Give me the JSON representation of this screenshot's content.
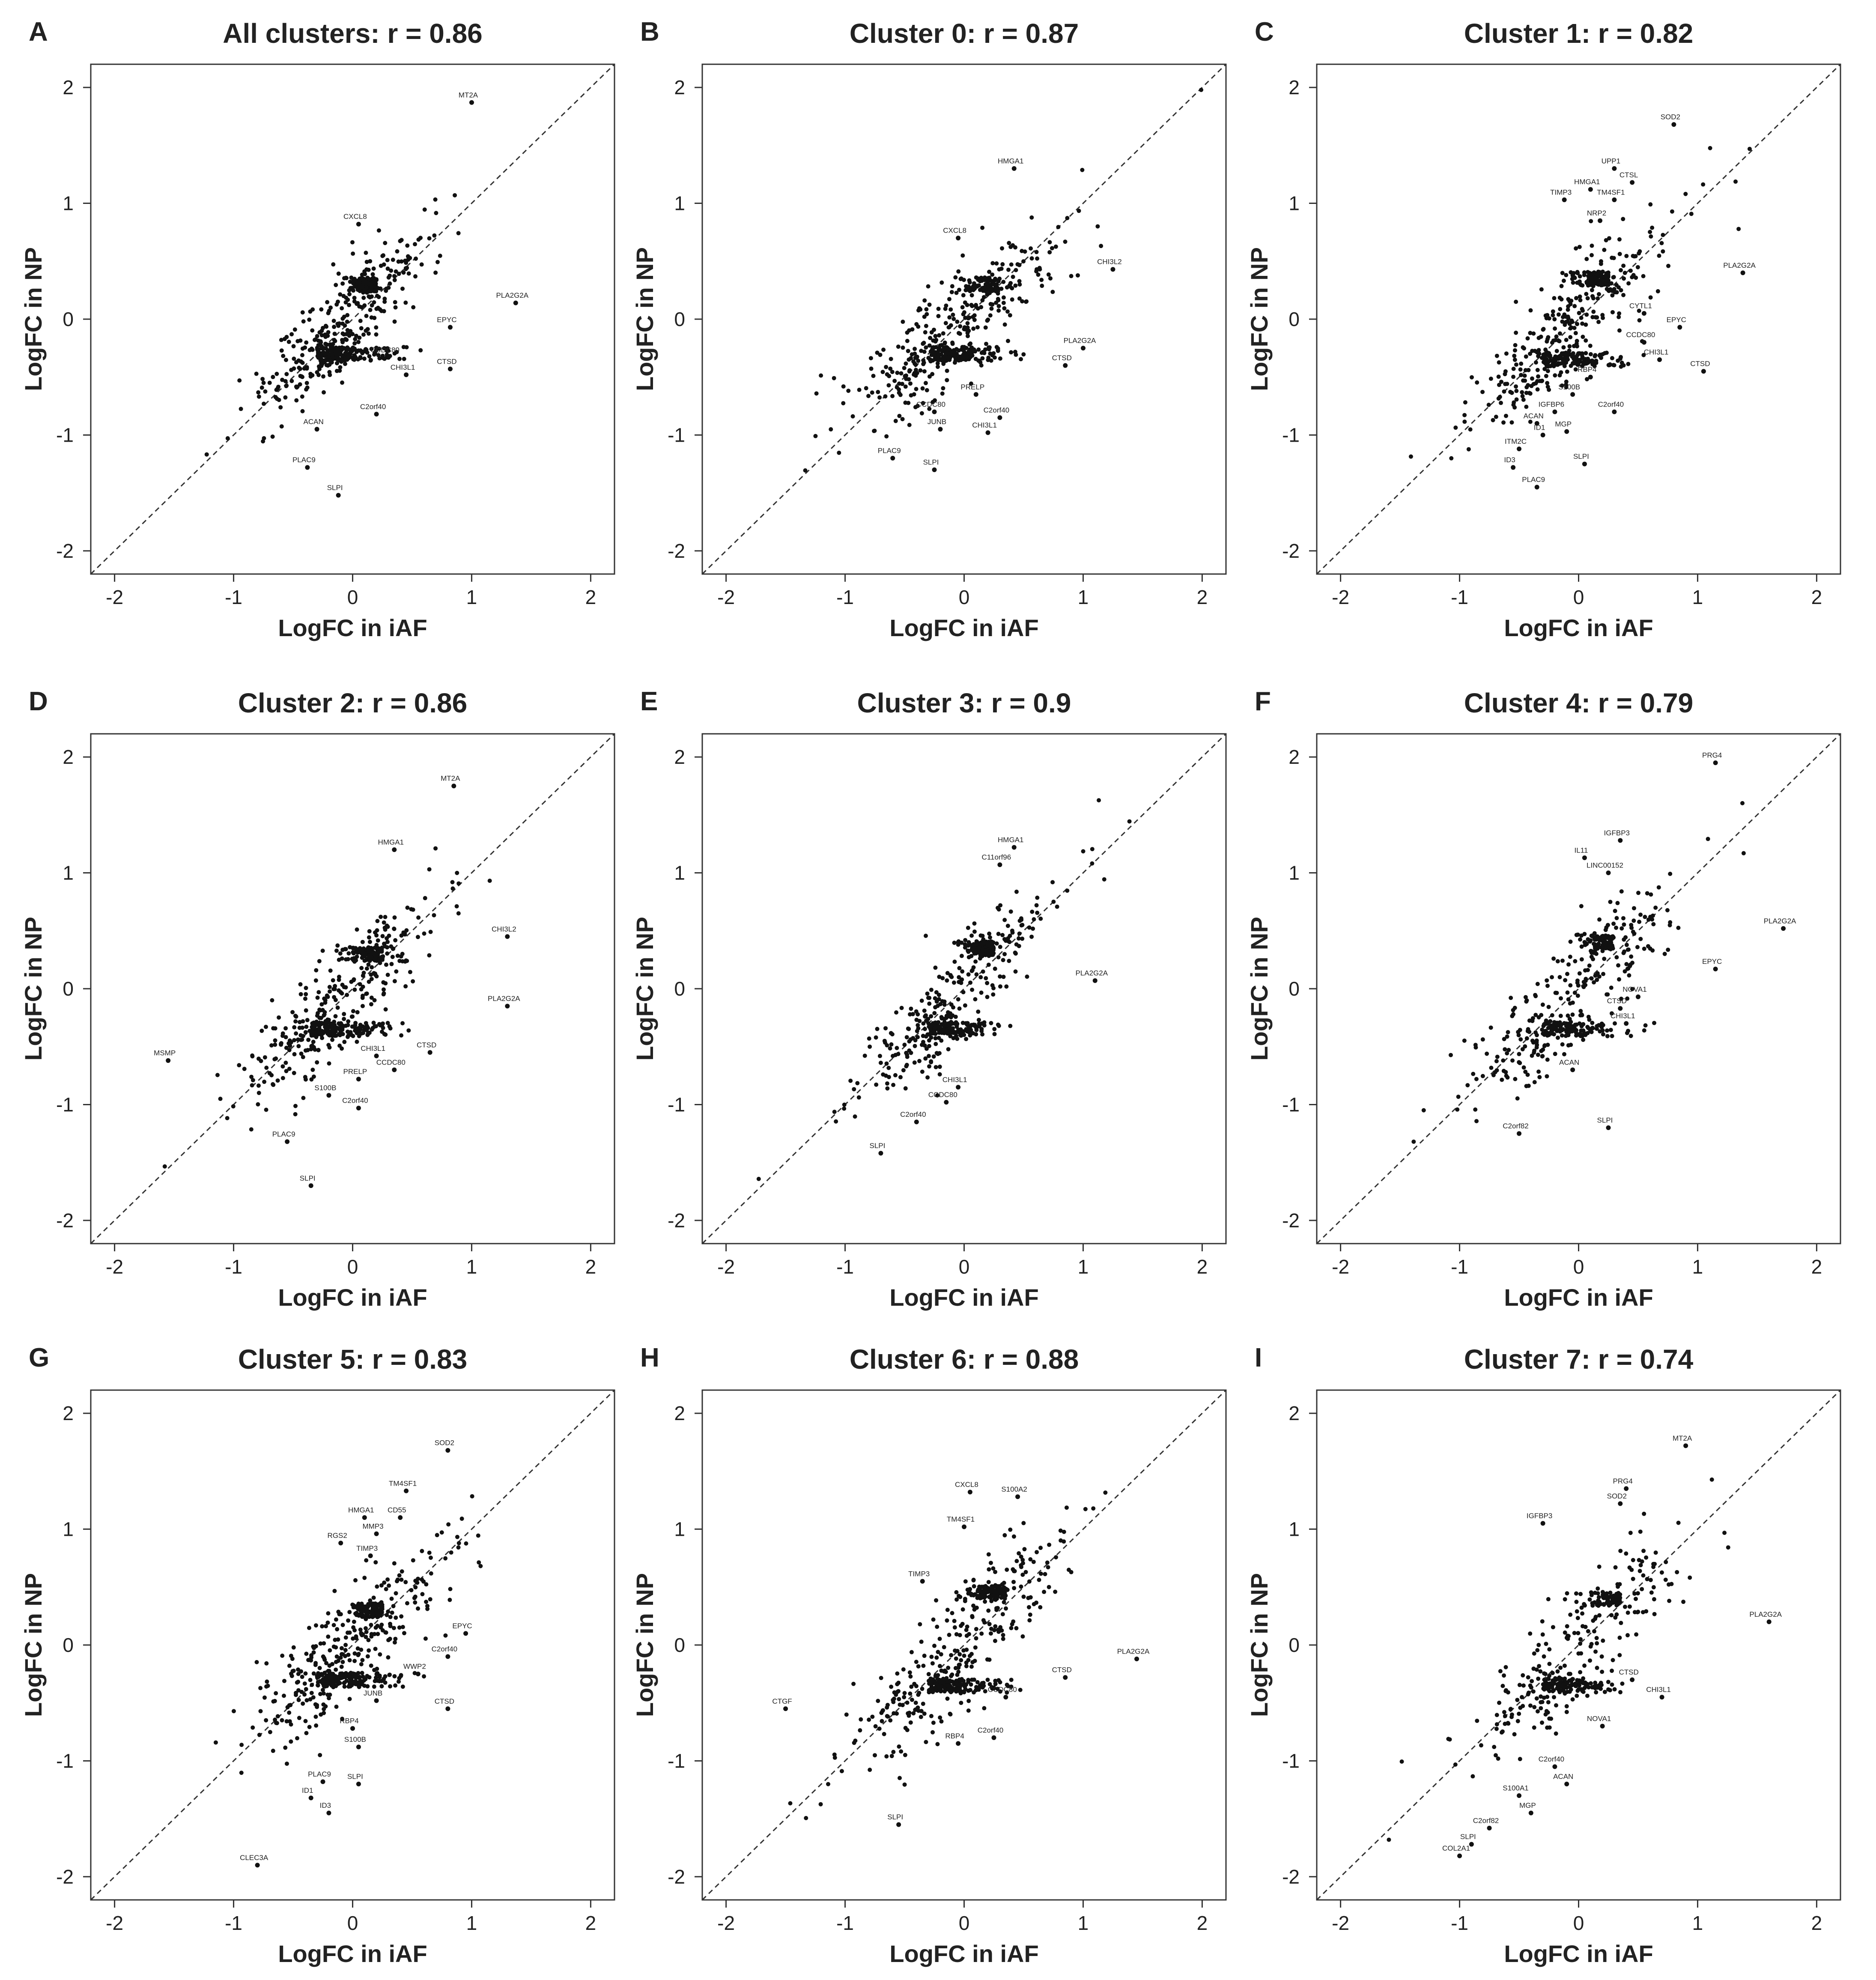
{
  "figure": {
    "x_ticks": [
      "-2",
      "-1",
      "0",
      "1",
      "2"
    ],
    "y_ticks": [
      "-2",
      "-1",
      "0",
      "1",
      "2"
    ]
  },
  "chart_data": [
    {
      "type": "scatter",
      "panel": "A",
      "title": "All clusters: r = 0.86",
      "xlabel": "LogFC in iAF",
      "ylabel": "LogFC in NP",
      "xlim": [
        -2.2,
        2.2
      ],
      "ylim": [
        -2.2,
        2.2
      ],
      "reference_line": "y = x (dashed)",
      "labeled_points": [
        {
          "label": "MT2A",
          "x": 1.0,
          "y": 1.87
        },
        {
          "label": "CXCL8",
          "x": 0.05,
          "y": 0.82
        },
        {
          "label": "PLA2G2A",
          "x": 1.37,
          "y": 0.14
        },
        {
          "label": "EPYC",
          "x": 0.82,
          "y": -0.07
        },
        {
          "label": "CCDC80",
          "x": 0.3,
          "y": -0.33
        },
        {
          "label": "CTSD",
          "x": 0.82,
          "y": -0.43
        },
        {
          "label": "CHI3L1",
          "x": 0.45,
          "y": -0.48
        },
        {
          "label": "C2orf40",
          "x": 0.2,
          "y": -0.82
        },
        {
          "label": "ACAN",
          "x": -0.3,
          "y": -0.95
        },
        {
          "label": "PLAC9",
          "x": -0.38,
          "y": -1.28
        },
        {
          "label": "SLPI",
          "x": -0.12,
          "y": -1.52
        }
      ],
      "point_cloud": {
        "n": 600,
        "seed": 11,
        "pos_cx": 0.2,
        "pos_cy": 0.3,
        "neg_cx": -0.3,
        "neg_cy": -0.3,
        "spread": 0.32
      }
    },
    {
      "type": "scatter",
      "panel": "B",
      "title": "Cluster 0: r = 0.87",
      "xlabel": "LogFC in iAF",
      "ylabel": "LogFC in NP",
      "xlim": [
        -2.2,
        2.2
      ],
      "ylim": [
        -2.2,
        2.2
      ],
      "reference_line": "y = x (dashed)",
      "labeled_points": [
        {
          "label": "HMGA1",
          "x": 0.42,
          "y": 1.3
        },
        {
          "label": "CXCL8",
          "x": -0.05,
          "y": 0.7
        },
        {
          "label": "CHI3L2",
          "x": 1.25,
          "y": 0.43
        },
        {
          "label": "PLA2G2A",
          "x": 1.0,
          "y": -0.25
        },
        {
          "label": "CTSD",
          "x": 0.85,
          "y": -0.4
        },
        {
          "label": "PRELP",
          "x": 0.1,
          "y": -0.65
        },
        {
          "label": "CCDC80",
          "x": -0.25,
          "y": -0.8
        },
        {
          "label": "C2orf40",
          "x": 0.3,
          "y": -0.85
        },
        {
          "label": "JUNB",
          "x": -0.2,
          "y": -0.95
        },
        {
          "label": "CHI3L1",
          "x": 0.2,
          "y": -0.98
        },
        {
          "label": "PLAC9",
          "x": -0.6,
          "y": -1.2
        },
        {
          "label": "SLPI",
          "x": -0.25,
          "y": -1.3
        }
      ],
      "point_cloud": {
        "n": 560,
        "seed": 23,
        "pos_cx": 0.3,
        "pos_cy": 0.3,
        "neg_cx": -0.3,
        "neg_cy": -0.3,
        "spread": 0.34
      }
    },
    {
      "type": "scatter",
      "panel": "C",
      "title": "Cluster 1: r = 0.82",
      "xlabel": "LogFC in iAF",
      "ylabel": "LogFC in NP",
      "xlim": [
        -2.2,
        2.2
      ],
      "ylim": [
        -2.2,
        2.2
      ],
      "reference_line": "y = x (dashed)",
      "labeled_points": [
        {
          "label": "SOD2",
          "x": 0.8,
          "y": 1.68
        },
        {
          "label": "UPP1",
          "x": 0.3,
          "y": 1.3
        },
        {
          "label": "CTSL",
          "x": 0.45,
          "y": 1.18
        },
        {
          "label": "HMGA1",
          "x": 0.1,
          "y": 1.12
        },
        {
          "label": "TIMP3",
          "x": -0.12,
          "y": 1.03
        },
        {
          "label": "TM4SF1",
          "x": 0.3,
          "y": 1.03
        },
        {
          "label": "NRP2",
          "x": 0.18,
          "y": 0.85
        },
        {
          "label": "PLA2G2A",
          "x": 1.38,
          "y": 0.4
        },
        {
          "label": "CYTL1",
          "x": 0.55,
          "y": 0.05
        },
        {
          "label": "EPYC",
          "x": 0.85,
          "y": -0.07
        },
        {
          "label": "CCDC80",
          "x": 0.55,
          "y": -0.2
        },
        {
          "label": "CHI3L1",
          "x": 0.68,
          "y": -0.35
        },
        {
          "label": "CTSD",
          "x": 1.05,
          "y": -0.45
        },
        {
          "label": "RBP4",
          "x": 0.1,
          "y": -0.5
        },
        {
          "label": "S100B",
          "x": -0.05,
          "y": -0.65
        },
        {
          "label": "IGFBP6",
          "x": -0.2,
          "y": -0.8
        },
        {
          "label": "C2orf40",
          "x": 0.3,
          "y": -0.8
        },
        {
          "label": "ACAN",
          "x": -0.35,
          "y": -0.9
        },
        {
          "label": "MGP",
          "x": -0.1,
          "y": -0.97
        },
        {
          "label": "ID1",
          "x": -0.3,
          "y": -1.0
        },
        {
          "label": "ITM2C",
          "x": -0.5,
          "y": -1.12
        },
        {
          "label": "SLPI",
          "x": 0.05,
          "y": -1.25
        },
        {
          "label": "ID3",
          "x": -0.55,
          "y": -1.28
        },
        {
          "label": "PLAC9",
          "x": -0.35,
          "y": -1.45
        }
      ],
      "point_cloud": {
        "n": 560,
        "seed": 37,
        "pos_cx": 0.25,
        "pos_cy": 0.35,
        "neg_cx": -0.3,
        "neg_cy": -0.35,
        "spread": 0.36
      }
    },
    {
      "type": "scatter",
      "panel": "D",
      "title": "Cluster 2: r = 0.86",
      "xlabel": "LogFC in iAF",
      "ylabel": "LogFC in NP",
      "xlim": [
        -2.2,
        2.2
      ],
      "ylim": [
        -2.2,
        2.2
      ],
      "reference_line": "y = x (dashed)",
      "labeled_points": [
        {
          "label": "MT2A",
          "x": 0.85,
          "y": 1.75
        },
        {
          "label": "HMGA1",
          "x": 0.35,
          "y": 1.2
        },
        {
          "label": "CHI3L2",
          "x": 1.3,
          "y": 0.45
        },
        {
          "label": "PLA2G2A",
          "x": 1.3,
          "y": -0.15
        },
        {
          "label": "MSMP",
          "x": -1.55,
          "y": -0.62
        },
        {
          "label": "CHI3L1",
          "x": 0.2,
          "y": -0.58
        },
        {
          "label": "CTSD",
          "x": 0.65,
          "y": -0.55
        },
        {
          "label": "CCDC80",
          "x": 0.35,
          "y": -0.7
        },
        {
          "label": "PRELP",
          "x": 0.05,
          "y": -0.78
        },
        {
          "label": "S100B",
          "x": -0.2,
          "y": -0.92
        },
        {
          "label": "C2orf40",
          "x": 0.05,
          "y": -1.03
        },
        {
          "label": "PLAC9",
          "x": -0.55,
          "y": -1.32
        },
        {
          "label": "SLPI",
          "x": -0.35,
          "y": -1.7
        }
      ],
      "point_cloud": {
        "n": 560,
        "seed": 41,
        "pos_cx": 0.25,
        "pos_cy": 0.3,
        "neg_cx": -0.35,
        "neg_cy": -0.35,
        "spread": 0.34
      }
    },
    {
      "type": "scatter",
      "panel": "E",
      "title": "Cluster 3: r = 0.9",
      "xlabel": "LogFC in iAF",
      "ylabel": "LogFC in NP",
      "xlim": [
        -2.2,
        2.2
      ],
      "ylim": [
        -2.2,
        2.2
      ],
      "reference_line": "y = x (dashed)",
      "labeled_points": [
        {
          "label": "HMGA1",
          "x": 0.42,
          "y": 1.22
        },
        {
          "label": "C11orf96",
          "x": 0.3,
          "y": 1.07
        },
        {
          "label": "PLA2G2A",
          "x": 1.1,
          "y": 0.07
        },
        {
          "label": "CHI3L1",
          "x": -0.05,
          "y": -0.85
        },
        {
          "label": "CCDC80",
          "x": -0.15,
          "y": -0.98
        },
        {
          "label": "C2orf40",
          "x": -0.4,
          "y": -1.15
        },
        {
          "label": "SLPI",
          "x": -0.7,
          "y": -1.42
        }
      ],
      "point_cloud": {
        "n": 540,
        "seed": 53,
        "pos_cx": 0.25,
        "pos_cy": 0.35,
        "neg_cx": -0.3,
        "neg_cy": -0.35,
        "spread": 0.3
      }
    },
    {
      "type": "scatter",
      "panel": "F",
      "title": "Cluster 4: r = 0.79",
      "xlabel": "LogFC in iAF",
      "ylabel": "LogFC in NP",
      "xlim": [
        -2.2,
        2.2
      ],
      "ylim": [
        -2.2,
        2.2
      ],
      "reference_line": "y = x (dashed)",
      "labeled_points": [
        {
          "label": "PRG4",
          "x": 1.15,
          "y": 1.95
        },
        {
          "label": "IGFBP3",
          "x": 0.35,
          "y": 1.28
        },
        {
          "label": "IL11",
          "x": 0.05,
          "y": 1.13
        },
        {
          "label": "LINC00152",
          "x": 0.25,
          "y": 1.0
        },
        {
          "label": "PLA2G2A",
          "x": 1.72,
          "y": 0.52
        },
        {
          "label": "EPYC",
          "x": 1.15,
          "y": 0.17
        },
        {
          "label": "NOVA1",
          "x": 0.5,
          "y": -0.07
        },
        {
          "label": "CTSD",
          "x": 0.35,
          "y": -0.17
        },
        {
          "label": "CHI3L1",
          "x": 0.4,
          "y": -0.3
        },
        {
          "label": "ACAN",
          "x": -0.05,
          "y": -0.7
        },
        {
          "label": "SLPI",
          "x": 0.25,
          "y": -1.2
        },
        {
          "label": "C2orf82",
          "x": -0.5,
          "y": -1.25
        }
      ],
      "point_cloud": {
        "n": 480,
        "seed": 61,
        "pos_cx": 0.3,
        "pos_cy": 0.4,
        "neg_cx": -0.3,
        "neg_cy": -0.35,
        "spread": 0.34
      }
    },
    {
      "type": "scatter",
      "panel": "G",
      "title": "Cluster 5: r = 0.83",
      "xlabel": "LogFC in iAF",
      "ylabel": "LogFC in NP",
      "xlim": [
        -2.2,
        2.2
      ],
      "ylim": [
        -2.2,
        2.2
      ],
      "reference_line": "y = x (dashed)",
      "labeled_points": [
        {
          "label": "SOD2",
          "x": 0.8,
          "y": 1.68
        },
        {
          "label": "TM4SF1",
          "x": 0.45,
          "y": 1.33
        },
        {
          "label": "HMGA1",
          "x": 0.1,
          "y": 1.1
        },
        {
          "label": "CD55",
          "x": 0.4,
          "y": 1.1
        },
        {
          "label": "MMP3",
          "x": 0.2,
          "y": 0.96
        },
        {
          "label": "RGS2",
          "x": -0.1,
          "y": 0.88
        },
        {
          "label": "TIMP3",
          "x": 0.15,
          "y": 0.77
        },
        {
          "label": "EPYC",
          "x": 0.95,
          "y": 0.1
        },
        {
          "label": "C2orf40",
          "x": 0.8,
          "y": -0.1
        },
        {
          "label": "WWP2",
          "x": 0.55,
          "y": -0.25
        },
        {
          "label": "JUNB",
          "x": 0.2,
          "y": -0.48
        },
        {
          "label": "CTSD",
          "x": 0.8,
          "y": -0.55
        },
        {
          "label": "RBP4",
          "x": 0.0,
          "y": -0.72
        },
        {
          "label": "S100B",
          "x": 0.05,
          "y": -0.88
        },
        {
          "label": "PLAC9",
          "x": -0.25,
          "y": -1.18
        },
        {
          "label": "SLPI",
          "x": 0.05,
          "y": -1.2
        },
        {
          "label": "ID1",
          "x": -0.35,
          "y": -1.32
        },
        {
          "label": "ID3",
          "x": -0.2,
          "y": -1.45
        },
        {
          "label": "CLEC3A",
          "x": -0.8,
          "y": -1.9
        }
      ],
      "point_cloud": {
        "n": 560,
        "seed": 71,
        "pos_cx": 0.25,
        "pos_cy": 0.3,
        "neg_cx": -0.3,
        "neg_cy": -0.3,
        "spread": 0.35
      }
    },
    {
      "type": "scatter",
      "panel": "H",
      "title": "Cluster 6: r = 0.88",
      "xlabel": "LogFC in iAF",
      "ylabel": "LogFC in NP",
      "xlim": [
        -2.2,
        2.2
      ],
      "ylim": [
        -2.2,
        2.2
      ],
      "reference_line": "y = x (dashed)",
      "labeled_points": [
        {
          "label": "CXCL8",
          "x": 0.05,
          "y": 1.32
        },
        {
          "label": "S100A2",
          "x": 0.45,
          "y": 1.28
        },
        {
          "label": "TM4SF1",
          "x": 0.0,
          "y": 1.02
        },
        {
          "label": "TIMP3",
          "x": -0.35,
          "y": 0.55
        },
        {
          "label": "PLA2G2A",
          "x": 1.45,
          "y": -0.12
        },
        {
          "label": "CTSD",
          "x": 0.85,
          "y": -0.28
        },
        {
          "label": "CCDC80",
          "x": 0.35,
          "y": -0.45
        },
        {
          "label": "CTGF",
          "x": -1.5,
          "y": -0.55
        },
        {
          "label": "RBP4",
          "x": -0.05,
          "y": -0.85
        },
        {
          "label": "C2orf40",
          "x": 0.25,
          "y": -0.8
        },
        {
          "label": "SLPI",
          "x": -0.55,
          "y": -1.55
        }
      ],
      "point_cloud": {
        "n": 560,
        "seed": 83,
        "pos_cx": 0.35,
        "pos_cy": 0.45,
        "neg_cx": -0.3,
        "neg_cy": -0.35,
        "spread": 0.36
      }
    },
    {
      "type": "scatter",
      "panel": "I",
      "title": "Cluster 7: r = 0.74",
      "xlabel": "LogFC in iAF",
      "ylabel": "LogFC in NP",
      "xlim": [
        -2.2,
        2.2
      ],
      "ylim": [
        -2.2,
        2.2
      ],
      "reference_line": "y = x (dashed)",
      "labeled_points": [
        {
          "label": "MT2A",
          "x": 0.9,
          "y": 1.72
        },
        {
          "label": "PRG4",
          "x": 0.4,
          "y": 1.35
        },
        {
          "label": "SOD2",
          "x": 0.35,
          "y": 1.22
        },
        {
          "label": "IGFBP3",
          "x": -0.3,
          "y": 1.05
        },
        {
          "label": "PLA2G2A",
          "x": 1.6,
          "y": 0.2
        },
        {
          "label": "CTSD",
          "x": 0.45,
          "y": -0.3
        },
        {
          "label": "CHI3L1",
          "x": 0.7,
          "y": -0.45
        },
        {
          "label": "NOVA1",
          "x": 0.2,
          "y": -0.7
        },
        {
          "label": "C2orf40",
          "x": -0.2,
          "y": -1.05
        },
        {
          "label": "ACAN",
          "x": -0.1,
          "y": -1.2
        },
        {
          "label": "S100A1",
          "x": -0.5,
          "y": -1.3
        },
        {
          "label": "MGP",
          "x": -0.4,
          "y": -1.45
        },
        {
          "label": "C2orf82",
          "x": -0.75,
          "y": -1.58
        },
        {
          "label": "SLPI",
          "x": -0.9,
          "y": -1.72
        },
        {
          "label": "COL2A1",
          "x": -1.0,
          "y": -1.82
        }
      ],
      "point_cloud": {
        "n": 420,
        "seed": 97,
        "pos_cx": 0.35,
        "pos_cy": 0.4,
        "neg_cx": -0.3,
        "neg_cy": -0.35,
        "spread": 0.36
      }
    }
  ]
}
